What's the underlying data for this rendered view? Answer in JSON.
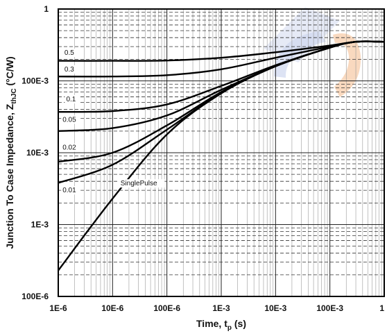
{
  "chart_data": {
    "type": "line",
    "title": "",
    "xlabel": "Time, t",
    "xlabel_sub": "p",
    "xlabel_unit": " (s)",
    "ylabel": "Junction To Case Impedance, Z",
    "ylabel_sub": "thJC",
    "ylabel_unit": " (°C/W)",
    "x_scale": "log",
    "y_scale": "log",
    "xlim": [
      1e-06,
      1
    ],
    "ylim": [
      0.0001,
      1
    ],
    "grid": true,
    "x_ticks": [
      {
        "value": 1e-06,
        "label": "1E-6"
      },
      {
        "value": 1e-05,
        "label": "10E-6"
      },
      {
        "value": 0.0001,
        "label": "100E-6"
      },
      {
        "value": 0.001,
        "label": "1E-3"
      },
      {
        "value": 0.01,
        "label": "10E-3"
      },
      {
        "value": 0.1,
        "label": "100E-3"
      },
      {
        "value": 1,
        "label": "1"
      }
    ],
    "y_ticks": [
      {
        "value": 0.0001,
        "label": "100E-6"
      },
      {
        "value": 0.001,
        "label": "1E-3"
      },
      {
        "value": 0.01,
        "label": "10E-3"
      },
      {
        "value": 0.1,
        "label": "100E-3"
      },
      {
        "value": 1,
        "label": "1"
      }
    ],
    "annotations": [
      {
        "text": "SinglePulse",
        "x": 1.4e-05,
        "y": 0.0035
      }
    ],
    "series": [
      {
        "name": "0.5",
        "label_at": [
          1.3e-06,
          0.23
        ],
        "x": [
          1e-06,
          1e-05,
          0.0001,
          0.001,
          0.01,
          0.1,
          0.3,
          1
        ],
        "y": [
          0.19,
          0.19,
          0.192,
          0.21,
          0.25,
          0.31,
          0.35,
          0.35
        ]
      },
      {
        "name": "0.3",
        "label_at": [
          1.3e-06,
          0.135
        ],
        "x": [
          1e-06,
          1e-05,
          0.0001,
          0.001,
          0.01,
          0.1,
          0.3,
          1
        ],
        "y": [
          0.115,
          0.115,
          0.12,
          0.145,
          0.21,
          0.3,
          0.35,
          0.35
        ]
      },
      {
        "name": "0.1",
        "label_at": [
          1.4e-06,
          0.052
        ],
        "x": [
          1e-06,
          1e-05,
          0.0001,
          0.001,
          0.01,
          0.1,
          0.3,
          1
        ],
        "y": [
          0.037,
          0.038,
          0.047,
          0.085,
          0.165,
          0.29,
          0.35,
          0.35
        ]
      },
      {
        "name": "0.05",
        "label_at": [
          1.2e-06,
          0.027
        ],
        "x": [
          1e-06,
          1e-05,
          0.0001,
          0.001,
          0.01,
          0.1,
          0.3,
          1
        ],
        "y": [
          0.02,
          0.022,
          0.033,
          0.075,
          0.16,
          0.29,
          0.35,
          0.35
        ]
      },
      {
        "name": "0.02",
        "label_at": [
          1.2e-06,
          0.011
        ],
        "x": [
          1e-06,
          1e-05,
          0.0001,
          0.001,
          0.01,
          0.1,
          0.3,
          1
        ],
        "y": [
          0.0075,
          0.01,
          0.024,
          0.07,
          0.16,
          0.29,
          0.35,
          0.35
        ]
      },
      {
        "name": "0.01",
        "label_at": [
          1.2e-06,
          0.0028
        ],
        "x": [
          1e-06,
          1e-05,
          0.0001,
          0.001,
          0.01,
          0.1,
          0.3,
          1
        ],
        "y": [
          0.0038,
          0.0068,
          0.021,
          0.068,
          0.16,
          0.29,
          0.35,
          0.35
        ]
      },
      {
        "name": "SinglePulse",
        "x": [
          1e-06,
          1e-05,
          0.0001,
          0.001,
          0.01,
          0.1,
          0.3,
          1
        ],
        "y": [
          0.00023,
          0.0023,
          0.018,
          0.067,
          0.16,
          0.29,
          0.35,
          0.35
        ]
      }
    ]
  }
}
